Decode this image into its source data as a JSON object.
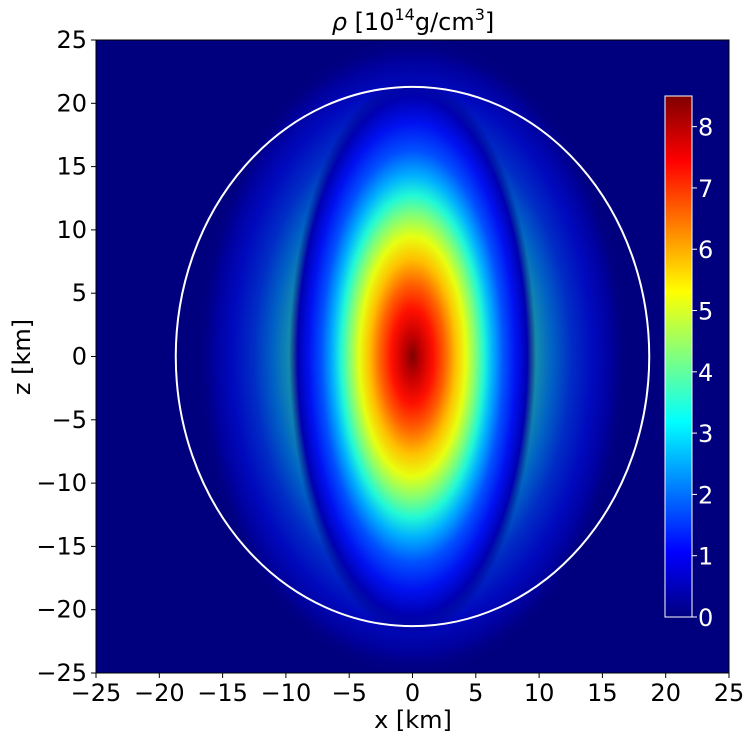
{
  "chart_data": {
    "type": "heatmap",
    "title_symbol": "ρ",
    "title_prefix": " [10",
    "title_exp1": "14",
    "title_mid": "g/cm",
    "title_exp2": "3",
    "title_suffix": "]",
    "xlabel": "x [km]",
    "ylabel": "z [km]",
    "xlim": [
      -25,
      25
    ],
    "ylim": [
      -25,
      25
    ],
    "xticks": [
      -25,
      -20,
      -15,
      -10,
      -5,
      0,
      5,
      10,
      15,
      20,
      25
    ],
    "yticks": [
      -25,
      -20,
      -15,
      -10,
      -5,
      0,
      5,
      10,
      15,
      20,
      25
    ],
    "xtick_labels": [
      "−25",
      "−20",
      "−15",
      "−10",
      "−5",
      "0",
      "5",
      "10",
      "15",
      "20",
      "25"
    ],
    "ytick_labels": [
      "−25",
      "−20",
      "−15",
      "−10",
      "−5",
      "0",
      "5",
      "10",
      "15",
      "20",
      "25"
    ],
    "grid": false,
    "colormap": "jet",
    "colorbar": {
      "range": [
        0,
        8.5
      ],
      "ticks": [
        0,
        1,
        2,
        3,
        4,
        5,
        6,
        7,
        8
      ],
      "tick_labels": [
        "0",
        "1",
        "2",
        "3",
        "4",
        "5",
        "6",
        "7",
        "8"
      ],
      "placement": "inside-right"
    },
    "peak_density": 8.4,
    "core_semi_axis_x_km": 5.0,
    "core_semi_axis_z_km": 22.0,
    "surface_contour": {
      "color": "#ffffff",
      "semi_axis_x_km": 18.7,
      "semi_axis_z_km": 21.3
    },
    "background_color": "#00007f"
  }
}
